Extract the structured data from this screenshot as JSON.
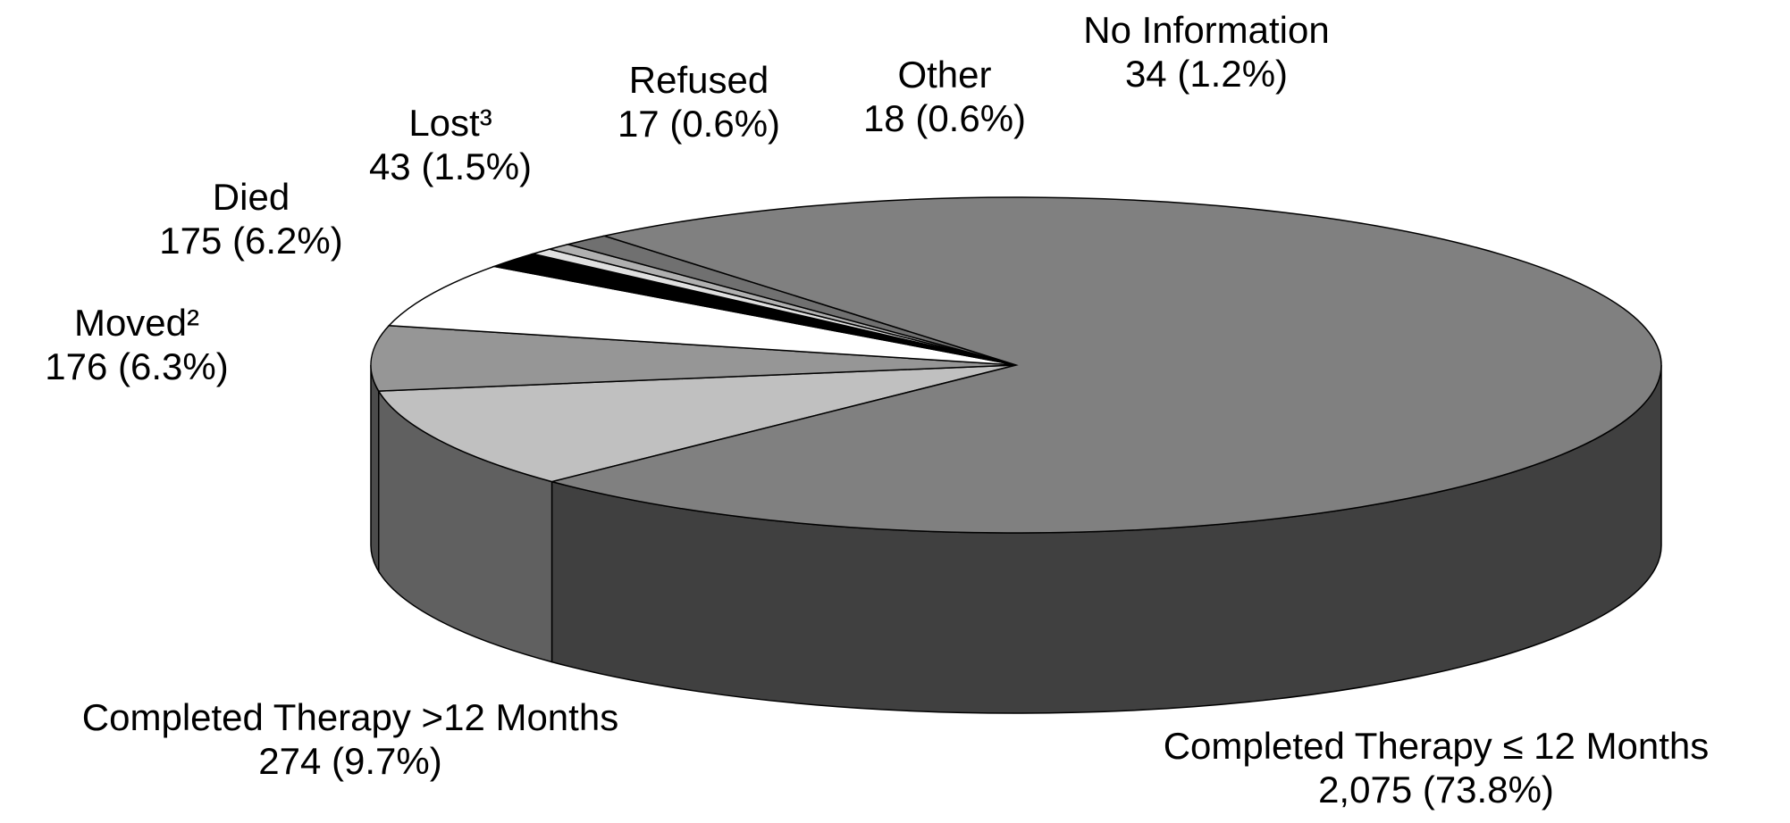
{
  "chart_data": {
    "type": "pie3d",
    "categories": [
      "Completed Therapy >12 Months",
      "Moved²",
      "Died",
      "Lost³",
      "Refused",
      "Other",
      "No Information",
      "Completed Therapy ≤ 12 Months"
    ],
    "values": [
      274,
      176,
      175,
      43,
      17,
      18,
      34,
      2075
    ],
    "value_labels": [
      "274 (9.7%)",
      "176 (6.3%)",
      "175 (6.2%)",
      "43 (1.5%)",
      "17 (0.6%)",
      "18 (0.6%)",
      "34 (1.2%)",
      "2,075 (73.8%)"
    ],
    "colors": [
      "#c0c0c0",
      "#969696",
      "#ffffff",
      "#000000",
      "#e0e0e0",
      "#b0b0b0",
      "#707070",
      "#808080"
    ]
  }
}
